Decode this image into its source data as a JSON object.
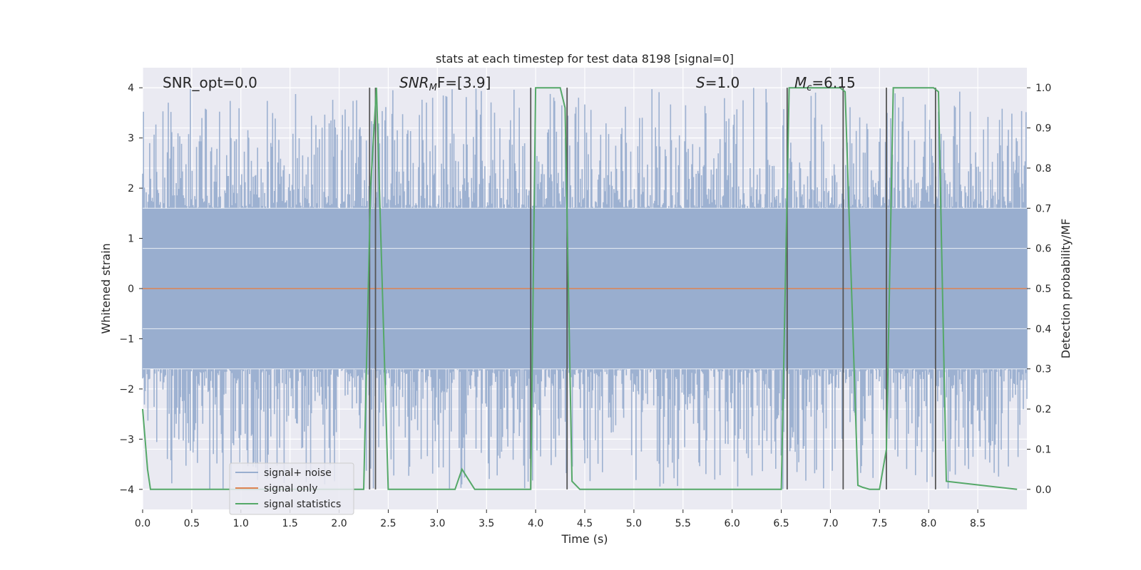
{
  "chart_data": {
    "type": "line",
    "title": "stats at each timestep for test data 8198 [signal=0]",
    "xlabel": "Time (s)",
    "ylabel": "Whitened strain",
    "ylabel_right": "Detection probability/MF",
    "xlim": [
      0,
      9.0
    ],
    "ylim": [
      -4.4,
      4.4
    ],
    "ylim_right": [
      -0.05,
      1.05
    ],
    "x_ticks": [
      "0.0",
      "0.5",
      "1.0",
      "1.5",
      "2.0",
      "2.5",
      "3.0",
      "3.5",
      "4.0",
      "4.5",
      "5.0",
      "5.5",
      "6.0",
      "6.5",
      "7.0",
      "7.5",
      "8.0",
      "8.5"
    ],
    "y_ticks": [
      "−4",
      "−3",
      "−2",
      "−1",
      "0",
      "1",
      "2",
      "3",
      "4"
    ],
    "y_ticks_right": [
      "0.0",
      "0.1",
      "0.2",
      "0.3",
      "0.4",
      "0.5",
      "0.6",
      "0.7",
      "0.8",
      "0.9",
      "1.0"
    ],
    "grid": true,
    "legend_position": "lower-left",
    "background": "#eaeaf2",
    "colors": {
      "noise": "#99aecf",
      "signal": "#dd8452",
      "stats": "#55a868",
      "vlines": "#555555"
    },
    "annotations": {
      "snr_opt": "SNR_opt=0.0",
      "snr_mf_main": "SNR",
      "snr_mf_sub": "M",
      "snr_mf_rest": "F=[3.9]",
      "s_italic": "S",
      "s_rest": "=1.0",
      "mc_main": "M",
      "mc_sub": "c",
      "mc_rest": "=6.15"
    },
    "series": [
      {
        "name": "signal+ noise",
        "band": {
          "core_lower": -1.6,
          "core_upper": 1.6,
          "peak_max": 4.0,
          "peak_min": -4.0,
          "samples": 1000
        }
      },
      {
        "name": "signal only",
        "x": [
          0,
          9.0
        ],
        "y": [
          0,
          0
        ]
      },
      {
        "name": "signal statistics",
        "x": [
          0.0,
          0.05,
          0.08,
          0.15,
          1.0,
          2.0,
          2.25,
          2.32,
          2.38,
          2.5,
          3.0,
          3.18,
          3.25,
          3.38,
          3.5,
          3.95,
          4.0,
          4.25,
          4.3,
          4.37,
          4.45,
          6.5,
          6.58,
          6.65,
          7.1,
          7.15,
          7.28,
          7.33,
          7.4,
          7.5,
          7.57,
          7.64,
          8.05,
          8.1,
          8.18,
          8.9
        ],
        "y": [
          0.2,
          0.05,
          0.0,
          0.0,
          0.0,
          0.0,
          0.0,
          0.75,
          1.0,
          0.0,
          0.0,
          0.0,
          0.05,
          0.0,
          0.0,
          0.0,
          1.0,
          1.0,
          0.95,
          0.02,
          0.0,
          0.0,
          1.0,
          1.0,
          1.0,
          0.99,
          0.01,
          0.005,
          0.0,
          0.0,
          0.1,
          1.0,
          1.0,
          0.99,
          0.02,
          0.0
        ]
      }
    ],
    "vlines": [
      2.31,
      2.37,
      3.95,
      4.32,
      6.56,
      7.13,
      7.57,
      8.07
    ]
  }
}
